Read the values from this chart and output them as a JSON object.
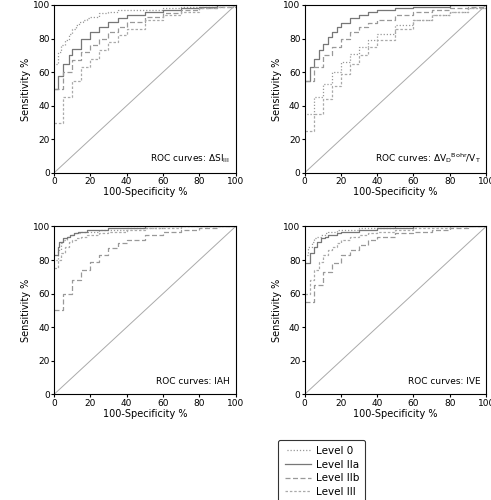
{
  "panels": [
    {
      "label_text": "ROC curves: ΔSI",
      "label_sub": "III",
      "curves": {
        "level0": {
          "fpr": [
            0,
            2,
            4,
            6,
            8,
            10,
            12,
            14,
            16,
            18,
            20,
            25,
            30,
            35,
            40,
            50,
            60,
            70,
            80,
            90,
            100
          ],
          "tpr": [
            65,
            72,
            76,
            79,
            83,
            86,
            88,
            90,
            91,
            92,
            93,
            95,
            96,
            97,
            97,
            97,
            98,
            99,
            99,
            100,
            100
          ]
        },
        "level2a": {
          "fpr": [
            0,
            2,
            5,
            8,
            10,
            15,
            20,
            25,
            30,
            35,
            40,
            50,
            60,
            70,
            80,
            90,
            100
          ],
          "tpr": [
            50,
            58,
            65,
            70,
            74,
            80,
            84,
            87,
            90,
            92,
            94,
            96,
            97,
            98,
            99,
            100,
            100
          ]
        },
        "level2b": {
          "fpr": [
            0,
            5,
            10,
            15,
            20,
            25,
            30,
            35,
            40,
            50,
            60,
            70,
            80,
            90,
            100
          ],
          "tpr": [
            50,
            60,
            67,
            72,
            76,
            80,
            84,
            87,
            90,
            93,
            95,
            97,
            98,
            99,
            100
          ]
        },
        "level3": {
          "fpr": [
            0,
            5,
            10,
            15,
            20,
            25,
            30,
            35,
            40,
            50,
            60,
            70,
            80,
            90,
            100
          ],
          "tpr": [
            30,
            45,
            55,
            63,
            68,
            73,
            78,
            82,
            86,
            91,
            94,
            96,
            98,
            99,
            100
          ]
        }
      }
    },
    {
      "label_text": "ROC curves: ΔV",
      "label_sub": "D",
      "label_sup": "Bohr",
      "label_vt": "/V",
      "label_vtsub": "T",
      "curves": {
        "level0": {
          "fpr": [
            0,
            5,
            10,
            15,
            20,
            25,
            30,
            35,
            40,
            50,
            60,
            70,
            80,
            90,
            100
          ],
          "tpr": [
            35,
            45,
            53,
            60,
            66,
            71,
            75,
            79,
            83,
            88,
            91,
            94,
            96,
            98,
            100
          ]
        },
        "level2a": {
          "fpr": [
            0,
            3,
            5,
            8,
            10,
            13,
            15,
            18,
            20,
            25,
            30,
            35,
            40,
            50,
            60,
            70,
            80,
            90,
            100
          ],
          "tpr": [
            55,
            63,
            68,
            73,
            77,
            81,
            84,
            87,
            89,
            92,
            94,
            96,
            97,
            98,
            99,
            99,
            100,
            100,
            100
          ]
        },
        "level2b": {
          "fpr": [
            0,
            5,
            10,
            15,
            20,
            25,
            30,
            35,
            40,
            50,
            60,
            70,
            80,
            90,
            100
          ],
          "tpr": [
            55,
            63,
            70,
            75,
            80,
            84,
            87,
            89,
            91,
            94,
            96,
            97,
            98,
            99,
            100
          ]
        },
        "level3": {
          "fpr": [
            0,
            5,
            10,
            15,
            20,
            25,
            30,
            35,
            40,
            50,
            60,
            70,
            80,
            90,
            100
          ],
          "tpr": [
            25,
            35,
            44,
            52,
            59,
            65,
            70,
            75,
            79,
            86,
            91,
            94,
            96,
            98,
            100
          ]
        }
      }
    },
    {
      "label_text": "ROC curves: IAH",
      "curves": {
        "level0": {
          "fpr": [
            0,
            2,
            4,
            5,
            7,
            9,
            11,
            13,
            15,
            18,
            20,
            25,
            30,
            40,
            50,
            60,
            70,
            80,
            90,
            100
          ],
          "tpr": [
            80,
            86,
            90,
            92,
            94,
            95,
            96,
            96,
            97,
            97,
            97,
            98,
            98,
            99,
            99,
            100,
            100,
            100,
            100,
            100
          ]
        },
        "level2a": {
          "fpr": [
            0,
            2,
            3,
            5,
            7,
            9,
            11,
            13,
            15,
            18,
            20,
            25,
            30,
            40,
            50,
            60,
            70,
            80,
            90,
            100
          ],
          "tpr": [
            83,
            88,
            91,
            93,
            94,
            95,
            96,
            97,
            97,
            98,
            98,
            98,
            99,
            99,
            100,
            100,
            100,
            100,
            100,
            100
          ]
        },
        "level2b": {
          "fpr": [
            0,
            5,
            10,
            15,
            20,
            25,
            30,
            35,
            40,
            50,
            60,
            70,
            80,
            90,
            100
          ],
          "tpr": [
            50,
            60,
            68,
            74,
            79,
            83,
            87,
            90,
            92,
            95,
            97,
            98,
            99,
            100,
            100
          ]
        },
        "level3": {
          "fpr": [
            0,
            2,
            4,
            6,
            8,
            10,
            12,
            15,
            18,
            20,
            25,
            30,
            35,
            40,
            50,
            60,
            70,
            80,
            90,
            100
          ],
          "tpr": [
            75,
            80,
            84,
            88,
            91,
            92,
            93,
            94,
            95,
            95,
            96,
            97,
            97,
            98,
            99,
            99,
            100,
            100,
            100,
            100
          ]
        }
      }
    },
    {
      "label_text": "ROC curves: IVE",
      "curves": {
        "level0": {
          "fpr": [
            0,
            2,
            4,
            5,
            7,
            9,
            11,
            13,
            15,
            18,
            20,
            25,
            30,
            40,
            50,
            60,
            70,
            80,
            90,
            100
          ],
          "tpr": [
            83,
            88,
            91,
            93,
            94,
            95,
            96,
            97,
            97,
            98,
            98,
            98,
            99,
            99,
            100,
            100,
            100,
            100,
            100,
            100
          ]
        },
        "level2a": {
          "fpr": [
            0,
            3,
            5,
            7,
            9,
            11,
            13,
            15,
            18,
            20,
            25,
            30,
            40,
            50,
            60,
            70,
            80,
            90,
            100
          ],
          "tpr": [
            78,
            84,
            88,
            91,
            93,
            94,
            95,
            95,
            96,
            97,
            97,
            98,
            99,
            99,
            100,
            100,
            100,
            100,
            100
          ]
        },
        "level2b": {
          "fpr": [
            0,
            5,
            10,
            15,
            20,
            25,
            30,
            35,
            40,
            50,
            60,
            70,
            80,
            90,
            100
          ],
          "tpr": [
            55,
            65,
            73,
            78,
            83,
            86,
            89,
            92,
            94,
            96,
            97,
            98,
            99,
            100,
            100
          ]
        },
        "level3": {
          "fpr": [
            0,
            3,
            5,
            8,
            10,
            13,
            15,
            18,
            20,
            25,
            30,
            35,
            40,
            50,
            60,
            70,
            80,
            90,
            100
          ],
          "tpr": [
            60,
            68,
            74,
            79,
            83,
            86,
            88,
            90,
            92,
            94,
            95,
            96,
            97,
            98,
            99,
            99,
            100,
            100,
            100
          ]
        }
      }
    }
  ],
  "style_map": {
    "level0": {
      "linestyle": [
        1,
        [
          1,
          1.5
        ]
      ],
      "color": "#999999",
      "linewidth": 0.9
    },
    "level2a": {
      "linestyle": "solid",
      "color": "#777777",
      "linewidth": 0.9
    },
    "level2b": {
      "linestyle": [
        0,
        [
          4,
          2
        ]
      ],
      "color": "#999999",
      "linewidth": 0.9
    },
    "level3": {
      "linestyle": [
        0,
        [
          2,
          1.5
        ]
      ],
      "color": "#aaaaaa",
      "linewidth": 0.9
    }
  },
  "legend": [
    {
      "label": "Level 0",
      "ls": [
        1,
        [
          1,
          1.5
        ]
      ],
      "color": "#999999",
      "lw": 0.9
    },
    {
      "label": "Level IIa",
      "ls": "solid",
      "color": "#777777",
      "lw": 0.9
    },
    {
      "label": "Level IIb",
      "ls": [
        0,
        [
          4,
          2
        ]
      ],
      "color": "#999999",
      "lw": 0.9
    },
    {
      "label": "Level III",
      "ls": [
        0,
        [
          2,
          1.5
        ]
      ],
      "color": "#aaaaaa",
      "lw": 0.9
    }
  ],
  "xlabel": "100-Specificity %",
  "ylabel": "Sensitivity %",
  "axis_range": [
    0,
    100
  ],
  "tick_vals": [
    0,
    20,
    40,
    60,
    80,
    100
  ]
}
